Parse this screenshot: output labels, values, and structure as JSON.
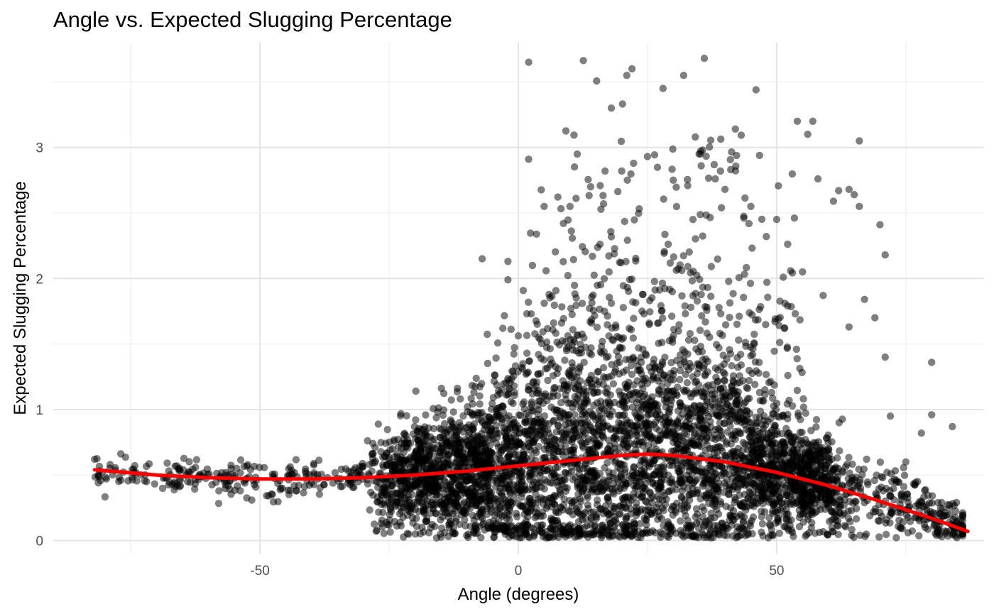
{
  "chart_data": {
    "type": "scatter",
    "title": "Angle vs. Expected Slugging Percentage",
    "xlabel": "Angle (degrees)",
    "ylabel": "Expected Slugging Percentage",
    "xlim": [
      -90,
      90
    ],
    "ylim": [
      -0.1,
      3.8
    ],
    "x_ticks": [
      -50,
      0,
      50
    ],
    "x_tick_labels": [
      "-50",
      "0",
      "50"
    ],
    "y_ticks": [
      0,
      1,
      2,
      3
    ],
    "y_tick_labels": [
      "0",
      "1",
      "2",
      "3"
    ],
    "grid": true,
    "point_color": "#000000",
    "point_opacity": 0.5,
    "trend_color": "#ff0000",
    "trend_line": {
      "x": [
        -82,
        -70,
        -60,
        -50,
        -40,
        -30,
        -20,
        -10,
        0,
        10,
        20,
        25,
        30,
        40,
        50,
        60,
        70,
        80,
        87
      ],
      "y": [
        0.54,
        0.5,
        0.48,
        0.47,
        0.47,
        0.48,
        0.5,
        0.53,
        0.57,
        0.61,
        0.65,
        0.66,
        0.65,
        0.6,
        0.52,
        0.42,
        0.3,
        0.17,
        0.07
      ]
    },
    "outlier_points": [
      {
        "x": 2,
        "y": 3.65
      },
      {
        "x": 36,
        "y": 3.68
      },
      {
        "x": 22,
        "y": 3.6
      },
      {
        "x": 21,
        "y": 3.55
      },
      {
        "x": 28,
        "y": 3.45
      },
      {
        "x": 32,
        "y": 3.55
      },
      {
        "x": 46,
        "y": 3.44
      },
      {
        "x": 18,
        "y": 3.3
      },
      {
        "x": 54,
        "y": 3.2
      },
      {
        "x": 57,
        "y": 3.2
      },
      {
        "x": 66,
        "y": 3.05
      },
      {
        "x": 2,
        "y": 2.91
      },
      {
        "x": 56,
        "y": 3.1
      },
      {
        "x": 42,
        "y": 3.14
      },
      {
        "x": 58,
        "y": 2.76
      },
      {
        "x": 62,
        "y": 2.67
      },
      {
        "x": 64,
        "y": 2.68
      },
      {
        "x": 65,
        "y": 2.64
      },
      {
        "x": 66,
        "y": 2.55
      },
      {
        "x": 70,
        "y": 2.41
      },
      {
        "x": 71,
        "y": 2.18
      },
      {
        "x": 61,
        "y": 2.59
      },
      {
        "x": 64,
        "y": 1.63
      },
      {
        "x": 69,
        "y": 1.7
      },
      {
        "x": 71,
        "y": 1.4
      },
      {
        "x": 80,
        "y": 1.36
      },
      {
        "x": 80,
        "y": 0.96
      },
      {
        "x": 84,
        "y": 0.87
      },
      {
        "x": 78,
        "y": 0.82
      },
      {
        "x": -7,
        "y": 2.15
      },
      {
        "x": -2,
        "y": 2.13
      },
      {
        "x": -2,
        "y": 1.99
      },
      {
        "x": -3,
        "y": 1.62
      },
      {
        "x": -82,
        "y": 0.62
      },
      {
        "x": -79,
        "y": 0.58
      },
      {
        "x": -64,
        "y": 0.45
      },
      {
        "x": 5,
        "y": 2.55
      },
      {
        "x": 10,
        "y": 2.55
      },
      {
        "x": 14,
        "y": 2.7
      },
      {
        "x": 20,
        "y": 2.82
      },
      {
        "x": 25,
        "y": 2.93
      },
      {
        "x": 30,
        "y": 2.75
      },
      {
        "x": 35,
        "y": 2.95
      },
      {
        "x": 40,
        "y": 2.68
      },
      {
        "x": 45,
        "y": 2.55
      },
      {
        "x": 48,
        "y": 2.32
      },
      {
        "x": 50,
        "y": 2.45
      },
      {
        "x": 55,
        "y": 2.05
      },
      {
        "x": 59,
        "y": 1.87
      },
      {
        "x": 67,
        "y": 1.84
      },
      {
        "x": 72,
        "y": 0.95
      },
      {
        "x": 75,
        "y": 0.6
      }
    ],
    "density_note_values": {
      "count_approx": 9000
    }
  }
}
